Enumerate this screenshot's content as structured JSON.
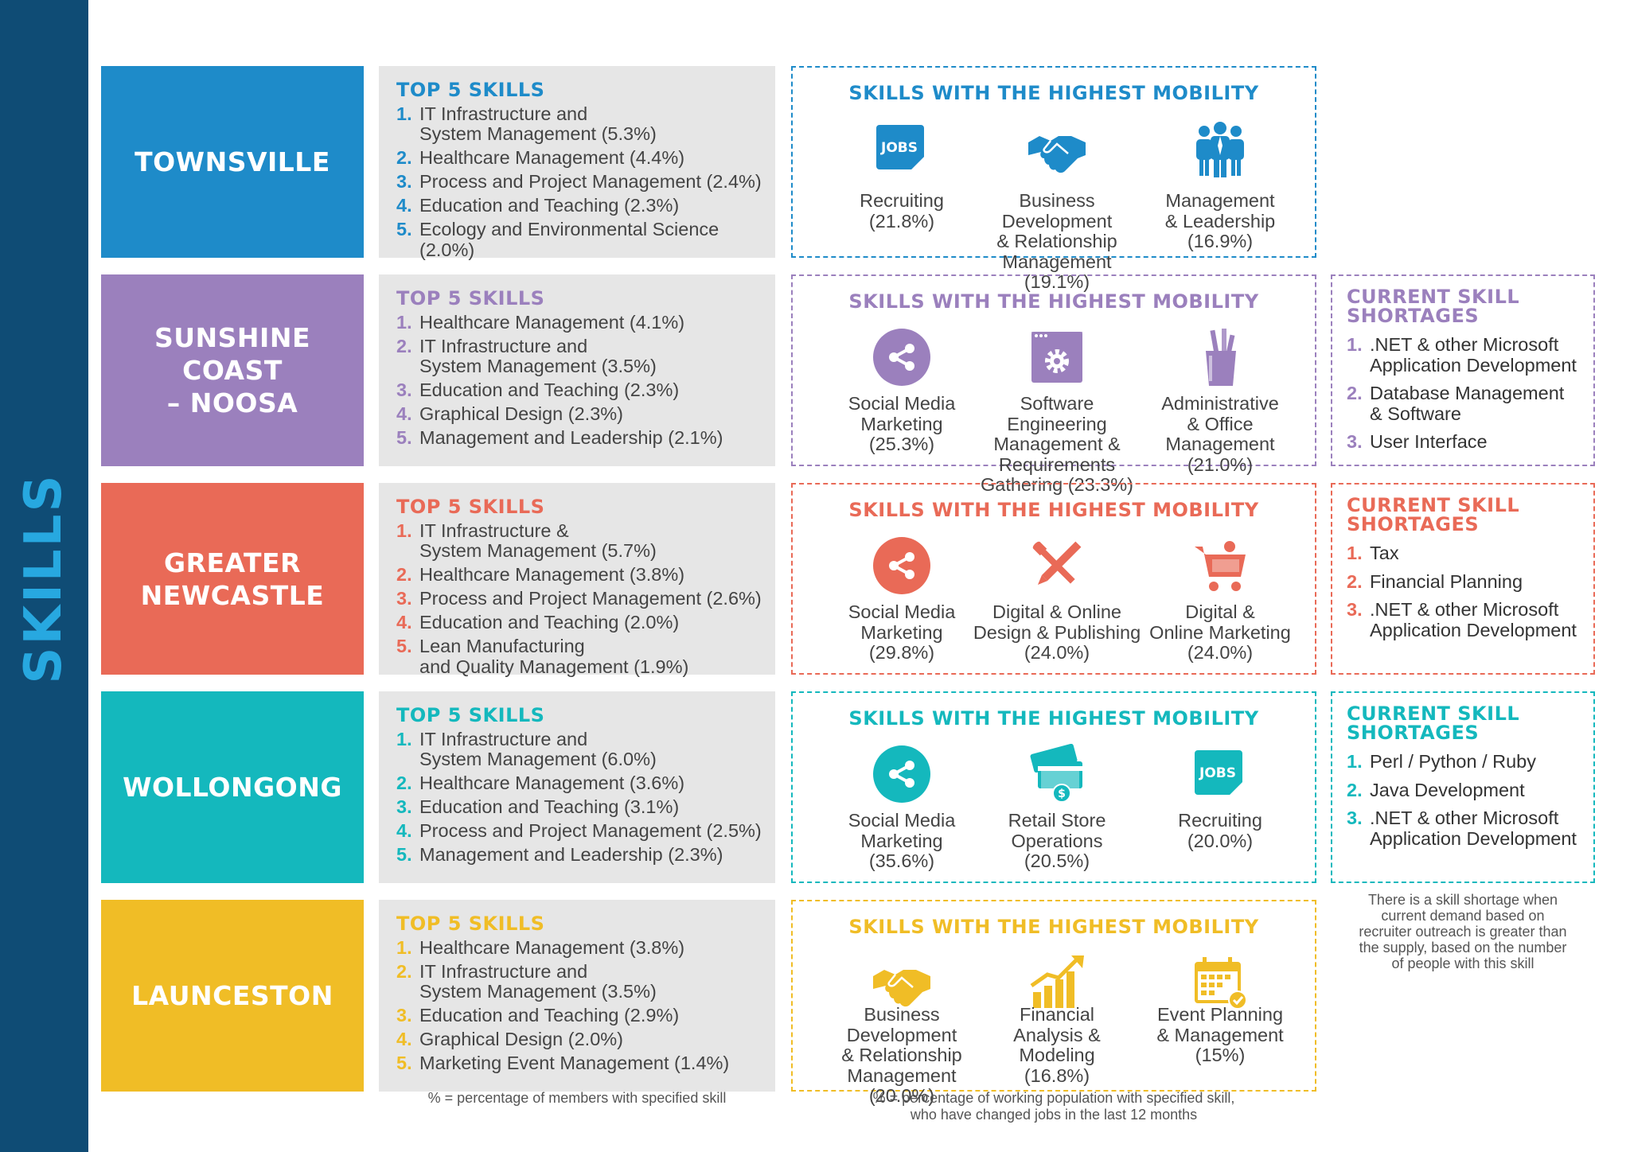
{
  "sidebar": {
    "label": "SKILLS"
  },
  "rows": [
    {
      "city": [
        "TOWNSVILLE"
      ],
      "color": "#1e8bc9",
      "top5": {
        "heading": "TOP 5 SKILLS",
        "items": [
          {
            "n": "1.",
            "t": "IT Infrastructure and\nSystem Management (5.3%)"
          },
          {
            "n": "2.",
            "t": "Healthcare Management (4.4%)"
          },
          {
            "n": "3.",
            "t": "Process and Project Management (2.4%)"
          },
          {
            "n": "4.",
            "t": "Education and Teaching (2.3%)"
          },
          {
            "n": "5.",
            "t": "Ecology and Environmental Science (2.0%)"
          }
        ]
      },
      "mobility": {
        "heading": "SKILLS WITH THE HIGHEST MOBILITY",
        "items": [
          {
            "icon": "jobs-icon",
            "label": "Recruiting\n(21.8%)"
          },
          {
            "icon": "handshake-icon",
            "label": "Business Development\n& Relationship\nManagement (19.1%)"
          },
          {
            "icon": "people-icon",
            "label": "Management\n& Leadership\n(16.9%)"
          }
        ]
      },
      "shortages": null
    },
    {
      "city": [
        "SUNSHINE COAST",
        "– NOOSA"
      ],
      "color": "#9b80bd",
      "top5": {
        "heading": "TOP 5 SKILLS",
        "items": [
          {
            "n": "1.",
            "t": "Healthcare Management (4.1%)"
          },
          {
            "n": "2.",
            "t": "IT Infrastructure and\nSystem Management (3.5%)"
          },
          {
            "n": "3.",
            "t": "Education and Teaching (2.3%)"
          },
          {
            "n": "4.",
            "t": "Graphical Design (2.3%)"
          },
          {
            "n": "5.",
            "t": "Management and Leadership (2.1%)"
          }
        ]
      },
      "mobility": {
        "heading": "SKILLS WITH THE HIGHEST MOBILITY",
        "items": [
          {
            "icon": "share-icon",
            "label": "Social Media\nMarketing\n(25.3%)"
          },
          {
            "icon": "gear-window-icon",
            "label": "Software Engineering\nManagement &\nRequirements\nGathering (23.3%)"
          },
          {
            "icon": "pencil-cup-icon",
            "label": "Administrative\n& Office\nManagement\n(21.0%)"
          }
        ]
      },
      "shortages": {
        "heading": "CURRENT SKILL\nSHORTAGES",
        "items": [
          {
            "n": "1.",
            "t": ".NET & other Microsoft\nApplication Development"
          },
          {
            "n": "2.",
            "t": "Database Management\n& Software"
          },
          {
            "n": "3.",
            "t": "User Interface"
          }
        ]
      }
    },
    {
      "city": [
        "GREATER",
        "NEWCASTLE"
      ],
      "color": "#e96a57",
      "top5": {
        "heading": "TOP 5 SKILLS",
        "items": [
          {
            "n": "1.",
            "t": "IT Infrastructure &\nSystem Management (5.7%)"
          },
          {
            "n": "2.",
            "t": "Healthcare Management (3.8%)"
          },
          {
            "n": "3.",
            "t": "Process and Project Management (2.6%)"
          },
          {
            "n": "4.",
            "t": "Education and Teaching (2.0%)"
          },
          {
            "n": "5.",
            "t": "Lean Manufacturing\nand Quality Management (1.9%)"
          }
        ]
      },
      "mobility": {
        "heading": "SKILLS WITH THE HIGHEST MOBILITY",
        "items": [
          {
            "icon": "share-icon",
            "label": "Social Media\nMarketing\n(29.8%)"
          },
          {
            "icon": "pencil-brush-icon",
            "label": "Digital & Online\nDesign & Publishing\n(24.0%)"
          },
          {
            "icon": "cart-icon",
            "label": "Digital &\nOnline Marketing\n(24.0%)"
          }
        ]
      },
      "shortages": {
        "heading": "CURRENT SKILL\nSHORTAGES",
        "items": [
          {
            "n": "1.",
            "t": "Tax"
          },
          {
            "n": "2.",
            "t": "Financial Planning"
          },
          {
            "n": "3.",
            "t": ".NET & other Microsoft\nApplication Development"
          }
        ]
      }
    },
    {
      "city": [
        "WOLLONGONG"
      ],
      "color": "#14b8bd",
      "top5": {
        "heading": "TOP 5 SKILLS",
        "items": [
          {
            "n": "1.",
            "t": "IT Infrastructure and\nSystem Management (6.0%)"
          },
          {
            "n": "2.",
            "t": "Healthcare Management (3.6%)"
          },
          {
            "n": "3.",
            "t": "Education and Teaching (3.1%)"
          },
          {
            "n": "4.",
            "t": "Process and Project Management (2.5%)"
          },
          {
            "n": "5.",
            "t": "Management and Leadership (2.3%)"
          }
        ]
      },
      "mobility": {
        "heading": "SKILLS WITH THE HIGHEST MOBILITY",
        "items": [
          {
            "icon": "share-icon",
            "label": "Social Media\nMarketing\n(35.6%)"
          },
          {
            "icon": "store-card-icon",
            "label": "Retail Store\nOperations\n(20.5%)"
          },
          {
            "icon": "jobs-icon",
            "label": "Recruiting\n(20.0%)"
          }
        ]
      },
      "shortages": {
        "heading": "CURRENT SKILL\nSHORTAGES",
        "items": [
          {
            "n": "1.",
            "t": "Perl / Python / Ruby"
          },
          {
            "n": "2.",
            "t": "Java Development"
          },
          {
            "n": "3.",
            "t": ".NET & other Microsoft\nApplication Development"
          }
        ]
      }
    },
    {
      "city": [
        "LAUNCESTON"
      ],
      "color": "#f0bd26",
      "top5": {
        "heading": "TOP 5 SKILLS",
        "items": [
          {
            "n": "1.",
            "t": "Healthcare Management (3.8%)"
          },
          {
            "n": "2.",
            "t": "IT Infrastructure and\nSystem Management (3.5%)"
          },
          {
            "n": "3.",
            "t": "Education and Teaching (2.9%)"
          },
          {
            "n": "4.",
            "t": "Graphical Design (2.0%)"
          },
          {
            "n": "5.",
            "t": "Marketing Event Management (1.4%)"
          }
        ]
      },
      "mobility": {
        "heading": "SKILLS WITH THE HIGHEST MOBILITY",
        "items": [
          {
            "icon": "handshake-icon",
            "label": "Business\nDevelopment\n& Relationship\nManagement (20.0%)"
          },
          {
            "icon": "growth-chart-icon",
            "label": "Financial\nAnalysis &\nModeling\n(16.8%)"
          },
          {
            "icon": "calendar-icon",
            "label": "Event Planning\n& Management\n(15%)"
          }
        ]
      },
      "shortages": null
    }
  ],
  "notes": {
    "members": "% = percentage of members with specified skill",
    "working": "% = percentage of working population with specified skill,\nwho have changed jobs in the last 12 months",
    "shortage": "There is a skill shortage when\ncurrent demand based on\nrecruiter outreach is greater than\nthe supply, based on the number\nof people with this skill"
  }
}
